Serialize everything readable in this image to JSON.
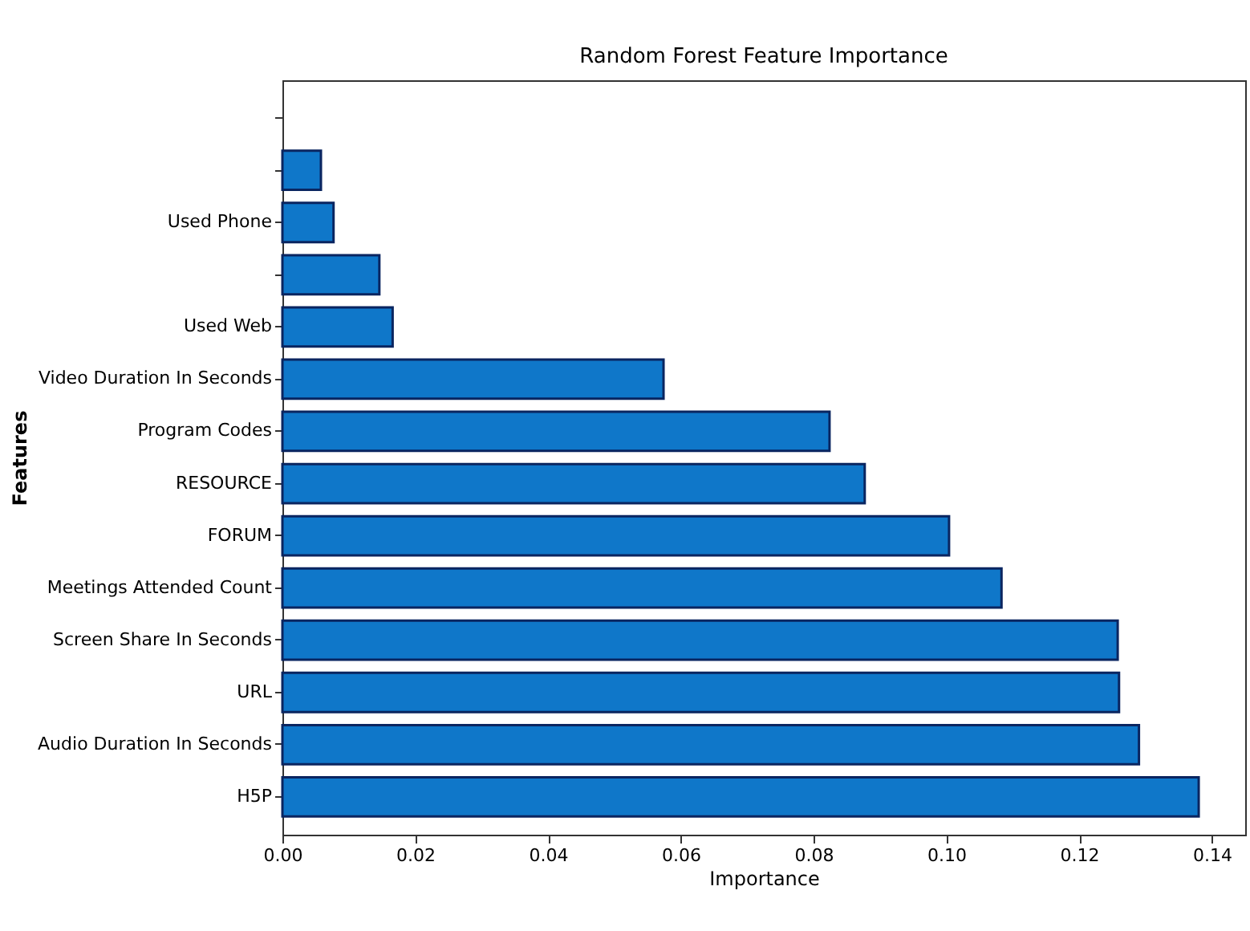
{
  "chart_data": {
    "type": "bar",
    "orientation": "horizontal",
    "title": "Random Forest Feature Importance",
    "xlabel": "Importance",
    "ylabel": "Features",
    "categories": [
      null,
      null,
      "Used Phone",
      null,
      "Used Web",
      "Video Duration In Seconds",
      "Program Codes",
      "RESOURCE",
      "FORUM",
      "Meetings Attended Count",
      "Screen Share In Seconds",
      "URL",
      "Audio Duration In Seconds",
      "H5P"
    ],
    "values": [
      0,
      0.0058,
      0.0077,
      0.0146,
      0.0166,
      0.0574,
      0.0824,
      0.0877,
      0.1004,
      0.1083,
      0.1258,
      0.126,
      0.129,
      0.138
    ],
    "color": "#0f77c9",
    "xlim": [
      0,
      0.145
    ],
    "xticks": [
      {
        "value": 0,
        "label": "0.00"
      },
      {
        "value": 0.02,
        "label": "0.02"
      },
      {
        "value": 0.04,
        "label": "0.04"
      },
      {
        "value": 0.06,
        "label": "0.06"
      },
      {
        "value": 0.08,
        "label": "0.08"
      },
      {
        "value": 0.1,
        "label": "0.10"
      },
      {
        "value": 0.12,
        "label": "0.12"
      },
      {
        "value": 0.14,
        "label": "0.14"
      }
    ],
    "grid": false
  }
}
